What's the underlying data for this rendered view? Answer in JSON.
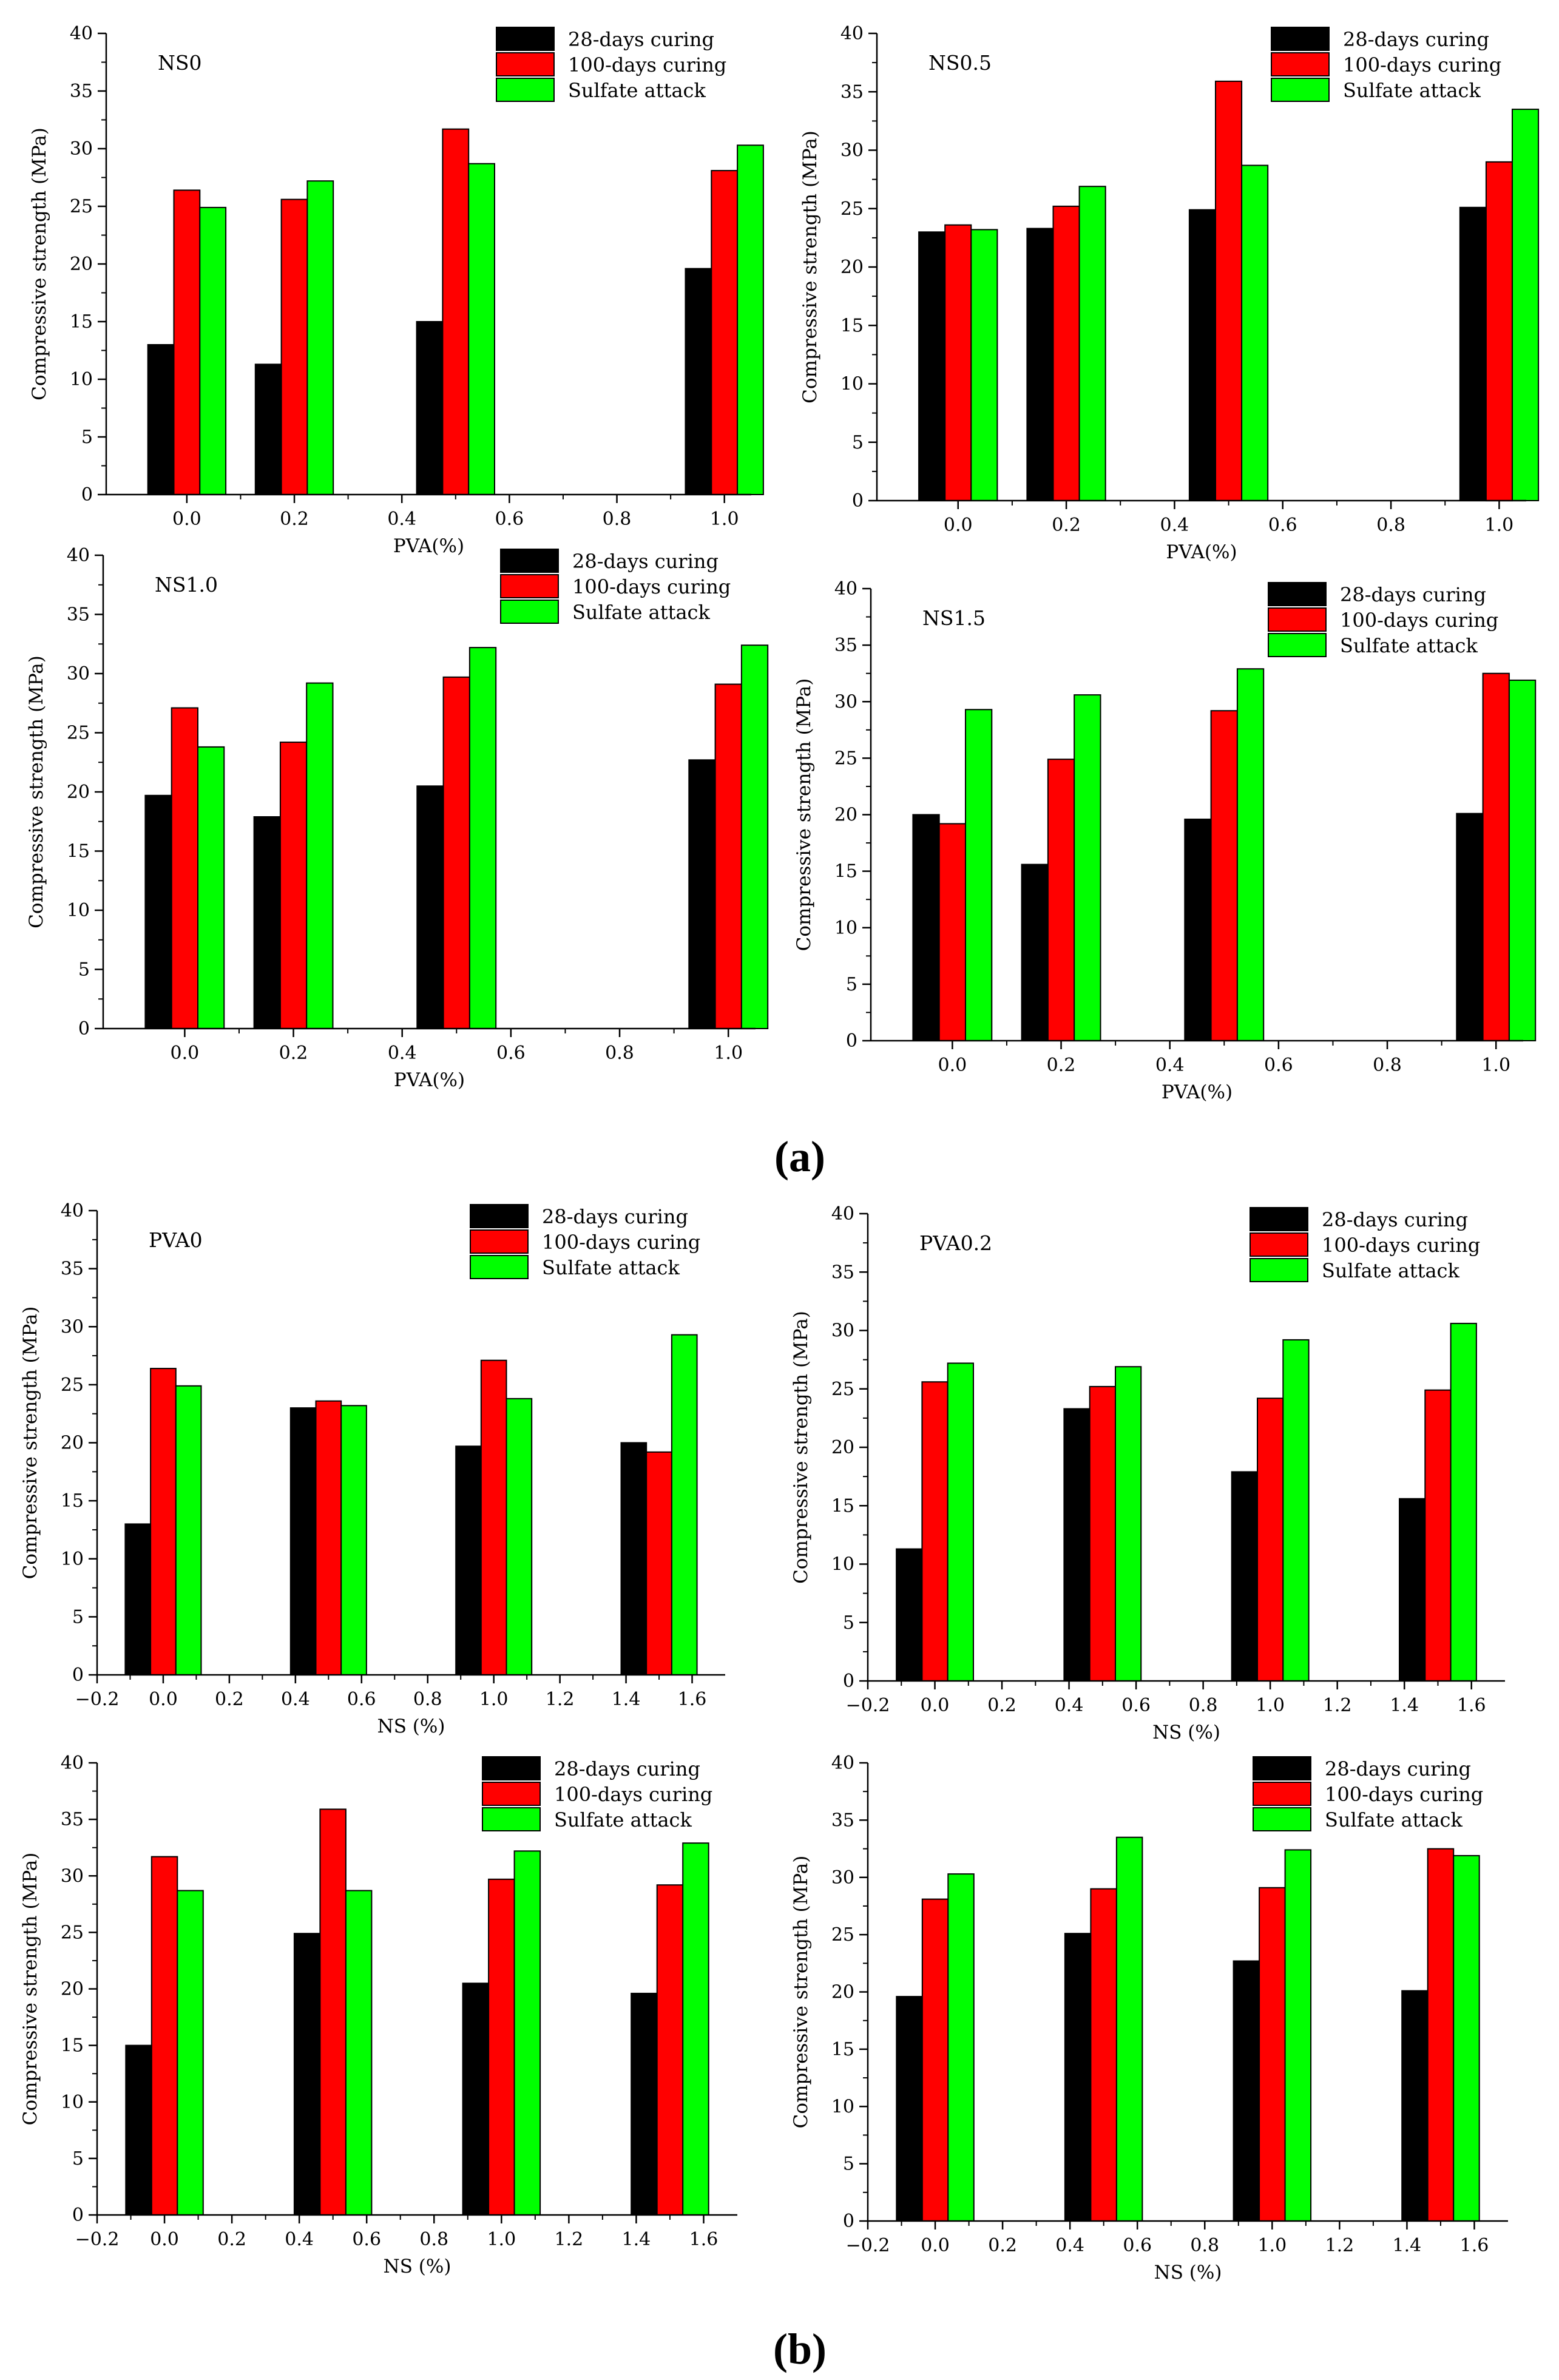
{
  "figure": {
    "part_a_label": "(a)",
    "part_b_label": "(b)"
  },
  "colors": {
    "curing28": "#000000",
    "curing100": "#ff0000",
    "sulfate": "#00ff00"
  },
  "chart_data": [
    {
      "id": "ns0",
      "type": "bar",
      "annotation": "NS0",
      "xlabel": "PVA(%)",
      "ylabel": "Compressive strength (MPa)",
      "ylim": [
        0,
        40
      ],
      "yticks": [
        "0",
        "5",
        "10",
        "15",
        "20",
        "25",
        "30",
        "35",
        "40"
      ],
      "xlim": [
        -0.15,
        1.05
      ],
      "xticks": [
        "0.0",
        "0.2",
        "0.4",
        "0.6",
        "0.8",
        "1.0"
      ],
      "x": [
        0.0,
        0.2,
        0.5,
        1.0
      ],
      "legend": "top-right",
      "series": [
        {
          "name": "28-days curing",
          "values": [
            13.0,
            11.3,
            15.0,
            19.6
          ]
        },
        {
          "name": "100-days curing",
          "values": [
            26.4,
            25.6,
            31.7,
            28.1
          ]
        },
        {
          "name": "Sulfate attack",
          "values": [
            24.9,
            27.2,
            28.7,
            30.3
          ]
        }
      ]
    },
    {
      "id": "ns05",
      "type": "bar",
      "annotation": "NS0.5",
      "xlabel": "PVA(%)",
      "ylabel": "Compressive strength (MPa)",
      "ylim": [
        0,
        40
      ],
      "yticks": [
        "0",
        "5",
        "10",
        "15",
        "20",
        "25",
        "30",
        "35",
        "40"
      ],
      "xlim": [
        -0.15,
        1.05
      ],
      "xticks": [
        "0.0",
        "0.2",
        "0.4",
        "0.6",
        "0.8",
        "1.0"
      ],
      "x": [
        0.0,
        0.2,
        0.5,
        1.0
      ],
      "legend": "top-right",
      "series": [
        {
          "name": "28-days curing",
          "values": [
            23.0,
            23.3,
            24.9,
            25.1
          ]
        },
        {
          "name": "100-days curing",
          "values": [
            23.6,
            25.2,
            35.9,
            29.0
          ]
        },
        {
          "name": "Sulfate attack",
          "values": [
            23.2,
            26.9,
            28.7,
            33.5
          ]
        }
      ]
    },
    {
      "id": "ns10",
      "type": "bar",
      "annotation": "NS1.0",
      "xlabel": "PVA(%)",
      "ylabel": "Compressive strength (MPa)",
      "ylim": [
        0,
        40
      ],
      "yticks": [
        "0",
        "5",
        "10",
        "15",
        "20",
        "25",
        "30",
        "35",
        "40"
      ],
      "xlim": [
        -0.15,
        1.05
      ],
      "xticks": [
        "0.0",
        "0.2",
        "0.4",
        "0.6",
        "0.8",
        "1.0"
      ],
      "x": [
        0.0,
        0.2,
        0.5,
        1.0
      ],
      "legend": "top-right",
      "series": [
        {
          "name": "28-days curing",
          "values": [
            19.7,
            17.9,
            20.5,
            22.7
          ]
        },
        {
          "name": "100-days curing",
          "values": [
            27.1,
            24.2,
            29.7,
            29.1
          ]
        },
        {
          "name": "Sulfate attack",
          "values": [
            23.8,
            29.2,
            32.2,
            32.4
          ]
        }
      ]
    },
    {
      "id": "ns15",
      "type": "bar",
      "annotation": "NS1.5",
      "xlabel": "PVA(%)",
      "ylabel": "Compressive strength (MPa)",
      "ylim": [
        0,
        40
      ],
      "yticks": [
        "0",
        "5",
        "10",
        "15",
        "20",
        "25",
        "30",
        "35",
        "40"
      ],
      "xlim": [
        -0.15,
        1.05
      ],
      "xticks": [
        "0.0",
        "0.2",
        "0.4",
        "0.6",
        "0.8",
        "1.0"
      ],
      "x": [
        0.0,
        0.2,
        0.5,
        1.0
      ],
      "legend": "top-right",
      "series": [
        {
          "name": "28-days curing",
          "values": [
            20.0,
            15.6,
            19.6,
            20.1
          ]
        },
        {
          "name": "100-days curing",
          "values": [
            19.2,
            24.9,
            29.2,
            32.5
          ]
        },
        {
          "name": "Sulfate attack",
          "values": [
            29.3,
            30.6,
            32.9,
            31.9
          ]
        }
      ]
    },
    {
      "id": "pva0",
      "type": "bar",
      "annotation": "PVA0",
      "xlabel": "NS (%)",
      "ylabel": "Compressive strength (MPa)",
      "ylim": [
        0,
        40
      ],
      "yticks": [
        "0",
        "5",
        "10",
        "15",
        "20",
        "25",
        "30",
        "35",
        "40"
      ],
      "xlim": [
        -0.2,
        1.7
      ],
      "xticks": [
        "−0.2",
        "0.0",
        "0.2",
        "0.4",
        "0.6",
        "0.8",
        "1.0",
        "1.2",
        "1.4",
        "1.6"
      ],
      "x": [
        0.0,
        0.5,
        1.0,
        1.5
      ],
      "legend": "top-right",
      "series": [
        {
          "name": "28-days curing",
          "values": [
            13.0,
            23.0,
            19.7,
            20.0
          ]
        },
        {
          "name": "100-days curing",
          "values": [
            26.4,
            23.6,
            27.1,
            19.2
          ]
        },
        {
          "name": "Sulfate attack",
          "values": [
            24.9,
            23.2,
            23.8,
            29.3
          ]
        }
      ]
    },
    {
      "id": "pva02",
      "type": "bar",
      "annotation": "PVA0.2",
      "xlabel": "NS (%)",
      "ylabel": "Compressive strength (MPa)",
      "ylim": [
        0,
        40
      ],
      "yticks": [
        "0",
        "5",
        "10",
        "15",
        "20",
        "25",
        "30",
        "35",
        "40"
      ],
      "xlim": [
        -0.2,
        1.7
      ],
      "xticks": [
        "−0.2",
        "0.0",
        "0.2",
        "0.4",
        "0.6",
        "0.8",
        "1.0",
        "1.2",
        "1.4",
        "1.6"
      ],
      "x": [
        0.0,
        0.5,
        1.0,
        1.5
      ],
      "legend": "top-right",
      "series": [
        {
          "name": "28-days curing",
          "values": [
            11.3,
            23.3,
            17.9,
            15.6
          ]
        },
        {
          "name": "100-days curing",
          "values": [
            25.6,
            25.2,
            24.2,
            24.9
          ]
        },
        {
          "name": "Sulfate attack",
          "values": [
            27.2,
            26.9,
            29.2,
            30.6
          ]
        }
      ]
    },
    {
      "id": "pva05",
      "type": "bar",
      "annotation": "",
      "xlabel": "NS (%)",
      "ylabel": "Compressive strength (MPa)",
      "ylim": [
        0,
        40
      ],
      "yticks": [
        "0",
        "5",
        "10",
        "15",
        "20",
        "25",
        "30",
        "35",
        "40"
      ],
      "xlim": [
        -0.2,
        1.7
      ],
      "xticks": [
        "−0.2",
        "0.0",
        "0.2",
        "0.4",
        "0.6",
        "0.8",
        "1.0",
        "1.2",
        "1.4",
        "1.6"
      ],
      "x": [
        0.0,
        0.5,
        1.0,
        1.5
      ],
      "legend": "top-right",
      "series": [
        {
          "name": "28-days curing",
          "values": [
            15.0,
            24.9,
            20.5,
            19.6
          ]
        },
        {
          "name": "100-days curing",
          "values": [
            31.7,
            35.9,
            29.7,
            29.2
          ]
        },
        {
          "name": "Sulfate attack",
          "values": [
            28.7,
            28.7,
            32.2,
            32.9
          ]
        }
      ]
    },
    {
      "id": "pva10",
      "type": "bar",
      "annotation": "",
      "xlabel": "NS (%)",
      "ylabel": "Compressive strength (MPa)",
      "ylim": [
        0,
        40
      ],
      "yticks": [
        "0",
        "5",
        "10",
        "15",
        "20",
        "25",
        "30",
        "35",
        "40"
      ],
      "xlim": [
        -0.2,
        1.7
      ],
      "xticks": [
        "−0.2",
        "0.0",
        "0.2",
        "0.4",
        "0.6",
        "0.8",
        "1.0",
        "1.2",
        "1.4",
        "1.6"
      ],
      "x": [
        0.0,
        0.5,
        1.0,
        1.5
      ],
      "legend": "top-right",
      "series": [
        {
          "name": "28-days curing",
          "values": [
            19.6,
            25.1,
            22.7,
            20.1
          ]
        },
        {
          "name": "100-days curing",
          "values": [
            28.1,
            29.0,
            29.1,
            32.5
          ]
        },
        {
          "name": "Sulfate attack",
          "values": [
            30.3,
            33.5,
            32.4,
            31.9
          ]
        }
      ]
    }
  ]
}
